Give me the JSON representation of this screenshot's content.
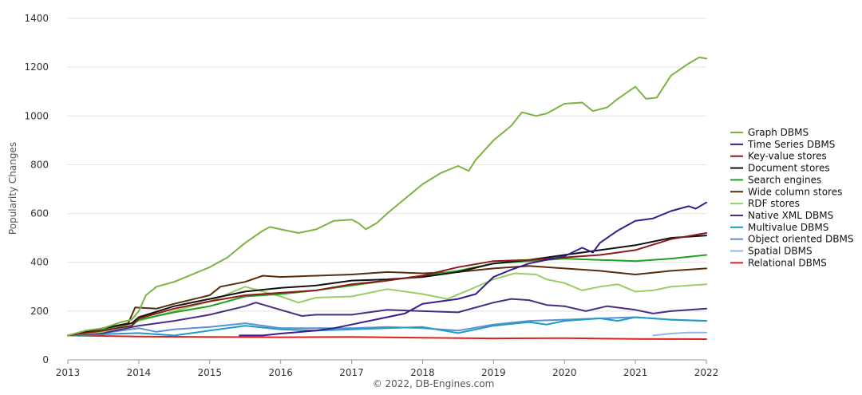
{
  "chart_data": {
    "type": "line",
    "ylabel": "Popularity Changes",
    "credit": "© 2022, DB-Engines.com",
    "xlim": [
      2013.0,
      2022.0
    ],
    "ylim": [
      0,
      1400
    ],
    "x_ticks": [
      2013,
      2014,
      2015,
      2016,
      2017,
      2018,
      2019,
      2020,
      2021,
      2022
    ],
    "y_ticks": [
      0,
      200,
      400,
      600,
      800,
      1000,
      1200,
      1400
    ],
    "grid": "horizontal",
    "legend_position": "right",
    "series": [
      {
        "name": "Graph DBMS",
        "color": "#7cb342",
        "points": [
          [
            2013.0,
            100
          ],
          [
            2013.25,
            120
          ],
          [
            2013.5,
            130
          ],
          [
            2013.75,
            155
          ],
          [
            2013.9,
            165
          ],
          [
            2014.0,
            200
          ],
          [
            2014.1,
            265
          ],
          [
            2014.25,
            300
          ],
          [
            2014.5,
            320
          ],
          [
            2014.75,
            350
          ],
          [
            2015.0,
            380
          ],
          [
            2015.25,
            420
          ],
          [
            2015.5,
            480
          ],
          [
            2015.75,
            530
          ],
          [
            2015.85,
            545
          ],
          [
            2016.0,
            535
          ],
          [
            2016.25,
            520
          ],
          [
            2016.5,
            535
          ],
          [
            2016.75,
            570
          ],
          [
            2017.0,
            575
          ],
          [
            2017.1,
            560
          ],
          [
            2017.2,
            535
          ],
          [
            2017.35,
            560
          ],
          [
            2017.5,
            600
          ],
          [
            2017.75,
            660
          ],
          [
            2018.0,
            720
          ],
          [
            2018.25,
            765
          ],
          [
            2018.5,
            795
          ],
          [
            2018.65,
            775
          ],
          [
            2018.75,
            820
          ],
          [
            2019.0,
            900
          ],
          [
            2019.25,
            960
          ],
          [
            2019.4,
            1015
          ],
          [
            2019.6,
            1000
          ],
          [
            2019.75,
            1010
          ],
          [
            2020.0,
            1050
          ],
          [
            2020.25,
            1055
          ],
          [
            2020.4,
            1020
          ],
          [
            2020.6,
            1035
          ],
          [
            2020.75,
            1070
          ],
          [
            2021.0,
            1120
          ],
          [
            2021.15,
            1070
          ],
          [
            2021.3,
            1075
          ],
          [
            2021.5,
            1165
          ],
          [
            2021.75,
            1215
          ],
          [
            2021.9,
            1240
          ],
          [
            2022.0,
            1235
          ]
        ]
      },
      {
        "name": "Time Series DBMS",
        "color": "#3b1a8f",
        "points": [
          [
            2015.42,
            100
          ],
          [
            2015.75,
            100
          ],
          [
            2016.0,
            108
          ],
          [
            2016.5,
            120
          ],
          [
            2016.75,
            130
          ],
          [
            2017.0,
            145
          ],
          [
            2017.5,
            175
          ],
          [
            2017.75,
            190
          ],
          [
            2018.0,
            230
          ],
          [
            2018.5,
            250
          ],
          [
            2018.75,
            270
          ],
          [
            2019.0,
            340
          ],
          [
            2019.25,
            370
          ],
          [
            2019.5,
            395
          ],
          [
            2019.75,
            410
          ],
          [
            2020.0,
            425
          ],
          [
            2020.25,
            460
          ],
          [
            2020.4,
            440
          ],
          [
            2020.5,
            480
          ],
          [
            2020.75,
            530
          ],
          [
            2021.0,
            570
          ],
          [
            2021.25,
            580
          ],
          [
            2021.5,
            610
          ],
          [
            2021.75,
            630
          ],
          [
            2021.85,
            620
          ],
          [
            2022.0,
            645
          ]
        ]
      },
      {
        "name": "Key-value stores",
        "color": "#8b1a1a",
        "points": [
          [
            2013.0,
            100
          ],
          [
            2013.5,
            120
          ],
          [
            2013.9,
            140
          ],
          [
            2014.0,
            170
          ],
          [
            2014.5,
            210
          ],
          [
            2015.0,
            240
          ],
          [
            2015.5,
            265
          ],
          [
            2016.0,
            275
          ],
          [
            2016.5,
            285
          ],
          [
            2017.0,
            310
          ],
          [
            2017.5,
            325
          ],
          [
            2018.0,
            345
          ],
          [
            2018.5,
            380
          ],
          [
            2019.0,
            405
          ],
          [
            2019.5,
            410
          ],
          [
            2020.0,
            420
          ],
          [
            2020.5,
            430
          ],
          [
            2021.0,
            450
          ],
          [
            2021.5,
            495
          ],
          [
            2022.0,
            520
          ]
        ]
      },
      {
        "name": "Document stores",
        "color": "#111111",
        "points": [
          [
            2013.0,
            100
          ],
          [
            2013.5,
            130
          ],
          [
            2013.9,
            150
          ],
          [
            2014.0,
            175
          ],
          [
            2014.5,
            220
          ],
          [
            2015.0,
            250
          ],
          [
            2015.5,
            280
          ],
          [
            2016.0,
            295
          ],
          [
            2016.5,
            305
          ],
          [
            2017.0,
            325
          ],
          [
            2017.5,
            330
          ],
          [
            2018.0,
            340
          ],
          [
            2018.5,
            360
          ],
          [
            2019.0,
            395
          ],
          [
            2019.5,
            410
          ],
          [
            2020.0,
            430
          ],
          [
            2020.5,
            450
          ],
          [
            2021.0,
            470
          ],
          [
            2021.5,
            500
          ],
          [
            2022.0,
            510
          ]
        ]
      },
      {
        "name": "Search engines",
        "color": "#22a022",
        "points": [
          [
            2013.0,
            100
          ],
          [
            2013.5,
            125
          ],
          [
            2013.9,
            140
          ],
          [
            2014.0,
            165
          ],
          [
            2014.5,
            195
          ],
          [
            2015.0,
            220
          ],
          [
            2015.5,
            260
          ],
          [
            2016.0,
            270
          ],
          [
            2016.5,
            285
          ],
          [
            2017.0,
            305
          ],
          [
            2017.5,
            325
          ],
          [
            2018.0,
            345
          ],
          [
            2018.5,
            365
          ],
          [
            2019.0,
            395
          ],
          [
            2019.5,
            405
          ],
          [
            2020.0,
            415
          ],
          [
            2020.5,
            410
          ],
          [
            2021.0,
            405
          ],
          [
            2021.5,
            415
          ],
          [
            2022.0,
            430
          ]
        ]
      },
      {
        "name": "Wide column stores",
        "color": "#5a2d0c",
        "points": [
          [
            2013.0,
            100
          ],
          [
            2013.5,
            130
          ],
          [
            2013.85,
            150
          ],
          [
            2013.95,
            215
          ],
          [
            2014.25,
            210
          ],
          [
            2014.5,
            230
          ],
          [
            2015.0,
            265
          ],
          [
            2015.15,
            300
          ],
          [
            2015.5,
            320
          ],
          [
            2015.75,
            345
          ],
          [
            2016.0,
            340
          ],
          [
            2016.5,
            345
          ],
          [
            2017.0,
            350
          ],
          [
            2017.5,
            360
          ],
          [
            2018.0,
            355
          ],
          [
            2018.5,
            360
          ],
          [
            2019.0,
            375
          ],
          [
            2019.5,
            385
          ],
          [
            2020.0,
            375
          ],
          [
            2020.5,
            365
          ],
          [
            2021.0,
            350
          ],
          [
            2021.5,
            365
          ],
          [
            2022.0,
            375
          ]
        ]
      },
      {
        "name": "RDF stores",
        "color": "#9ccc65",
        "points": [
          [
            2013.0,
            100
          ],
          [
            2013.5,
            115
          ],
          [
            2014.0,
            160
          ],
          [
            2014.5,
            200
          ],
          [
            2015.0,
            240
          ],
          [
            2015.5,
            300
          ],
          [
            2015.75,
            280
          ],
          [
            2016.0,
            260
          ],
          [
            2016.25,
            235
          ],
          [
            2016.5,
            255
          ],
          [
            2017.0,
            260
          ],
          [
            2017.5,
            290
          ],
          [
            2018.0,
            270
          ],
          [
            2018.35,
            250
          ],
          [
            2018.6,
            280
          ],
          [
            2019.0,
            330
          ],
          [
            2019.3,
            355
          ],
          [
            2019.6,
            350
          ],
          [
            2019.75,
            330
          ],
          [
            2020.0,
            315
          ],
          [
            2020.25,
            285
          ],
          [
            2020.5,
            300
          ],
          [
            2020.75,
            310
          ],
          [
            2021.0,
            280
          ],
          [
            2021.25,
            285
          ],
          [
            2021.5,
            300
          ],
          [
            2022.0,
            310
          ]
        ]
      },
      {
        "name": "Native XML DBMS",
        "color": "#4a2c83",
        "points": [
          [
            2013.0,
            100
          ],
          [
            2013.5,
            110
          ],
          [
            2014.0,
            140
          ],
          [
            2014.5,
            160
          ],
          [
            2015.0,
            185
          ],
          [
            2015.5,
            220
          ],
          [
            2015.65,
            235
          ],
          [
            2016.0,
            205
          ],
          [
            2016.3,
            180
          ],
          [
            2016.5,
            185
          ],
          [
            2017.0,
            185
          ],
          [
            2017.5,
            205
          ],
          [
            2018.0,
            200
          ],
          [
            2018.5,
            195
          ],
          [
            2019.0,
            235
          ],
          [
            2019.25,
            250
          ],
          [
            2019.5,
            245
          ],
          [
            2019.75,
            225
          ],
          [
            2020.0,
            220
          ],
          [
            2020.3,
            200
          ],
          [
            2020.6,
            220
          ],
          [
            2021.0,
            205
          ],
          [
            2021.25,
            190
          ],
          [
            2021.5,
            200
          ],
          [
            2022.0,
            210
          ]
        ]
      },
      {
        "name": "Multivalue DBMS",
        "color": "#1f9cc4",
        "points": [
          [
            2013.0,
            100
          ],
          [
            2013.5,
            105
          ],
          [
            2014.0,
            110
          ],
          [
            2014.25,
            105
          ],
          [
            2014.5,
            100
          ],
          [
            2015.0,
            120
          ],
          [
            2015.5,
            140
          ],
          [
            2016.0,
            125
          ],
          [
            2016.5,
            120
          ],
          [
            2017.0,
            125
          ],
          [
            2017.5,
            130
          ],
          [
            2018.0,
            135
          ],
          [
            2018.5,
            110
          ],
          [
            2019.0,
            140
          ],
          [
            2019.5,
            155
          ],
          [
            2019.75,
            145
          ],
          [
            2020.0,
            160
          ],
          [
            2020.5,
            170
          ],
          [
            2020.75,
            160
          ],
          [
            2021.0,
            175
          ],
          [
            2021.5,
            165
          ],
          [
            2022.0,
            160
          ]
        ]
      },
      {
        "name": "Object oriented DBMS",
        "color": "#5b8fd6",
        "points": [
          [
            2013.0,
            100
          ],
          [
            2013.5,
            110
          ],
          [
            2014.0,
            130
          ],
          [
            2014.25,
            115
          ],
          [
            2014.5,
            125
          ],
          [
            2015.0,
            135
          ],
          [
            2015.5,
            150
          ],
          [
            2016.0,
            130
          ],
          [
            2016.5,
            130
          ],
          [
            2017.0,
            130
          ],
          [
            2017.5,
            135
          ],
          [
            2018.0,
            130
          ],
          [
            2018.5,
            120
          ],
          [
            2019.0,
            145
          ],
          [
            2019.5,
            160
          ],
          [
            2020.0,
            165
          ],
          [
            2020.5,
            170
          ],
          [
            2021.0,
            175
          ],
          [
            2021.5,
            165
          ],
          [
            2022.0,
            160
          ]
        ]
      },
      {
        "name": "Spatial DBMS",
        "color": "#8fb8ea",
        "points": [
          [
            2021.25,
            100
          ],
          [
            2021.5,
            108
          ],
          [
            2021.75,
            112
          ],
          [
            2022.0,
            112
          ]
        ]
      },
      {
        "name": "Relational DBMS",
        "color": "#e02020",
        "points": [
          [
            2013.0,
            100
          ],
          [
            2014.0,
            96
          ],
          [
            2015.0,
            94
          ],
          [
            2016.0,
            93
          ],
          [
            2017.0,
            94
          ],
          [
            2018.0,
            91
          ],
          [
            2019.0,
            88
          ],
          [
            2020.0,
            89
          ],
          [
            2021.0,
            86
          ],
          [
            2022.0,
            85
          ]
        ]
      }
    ]
  }
}
